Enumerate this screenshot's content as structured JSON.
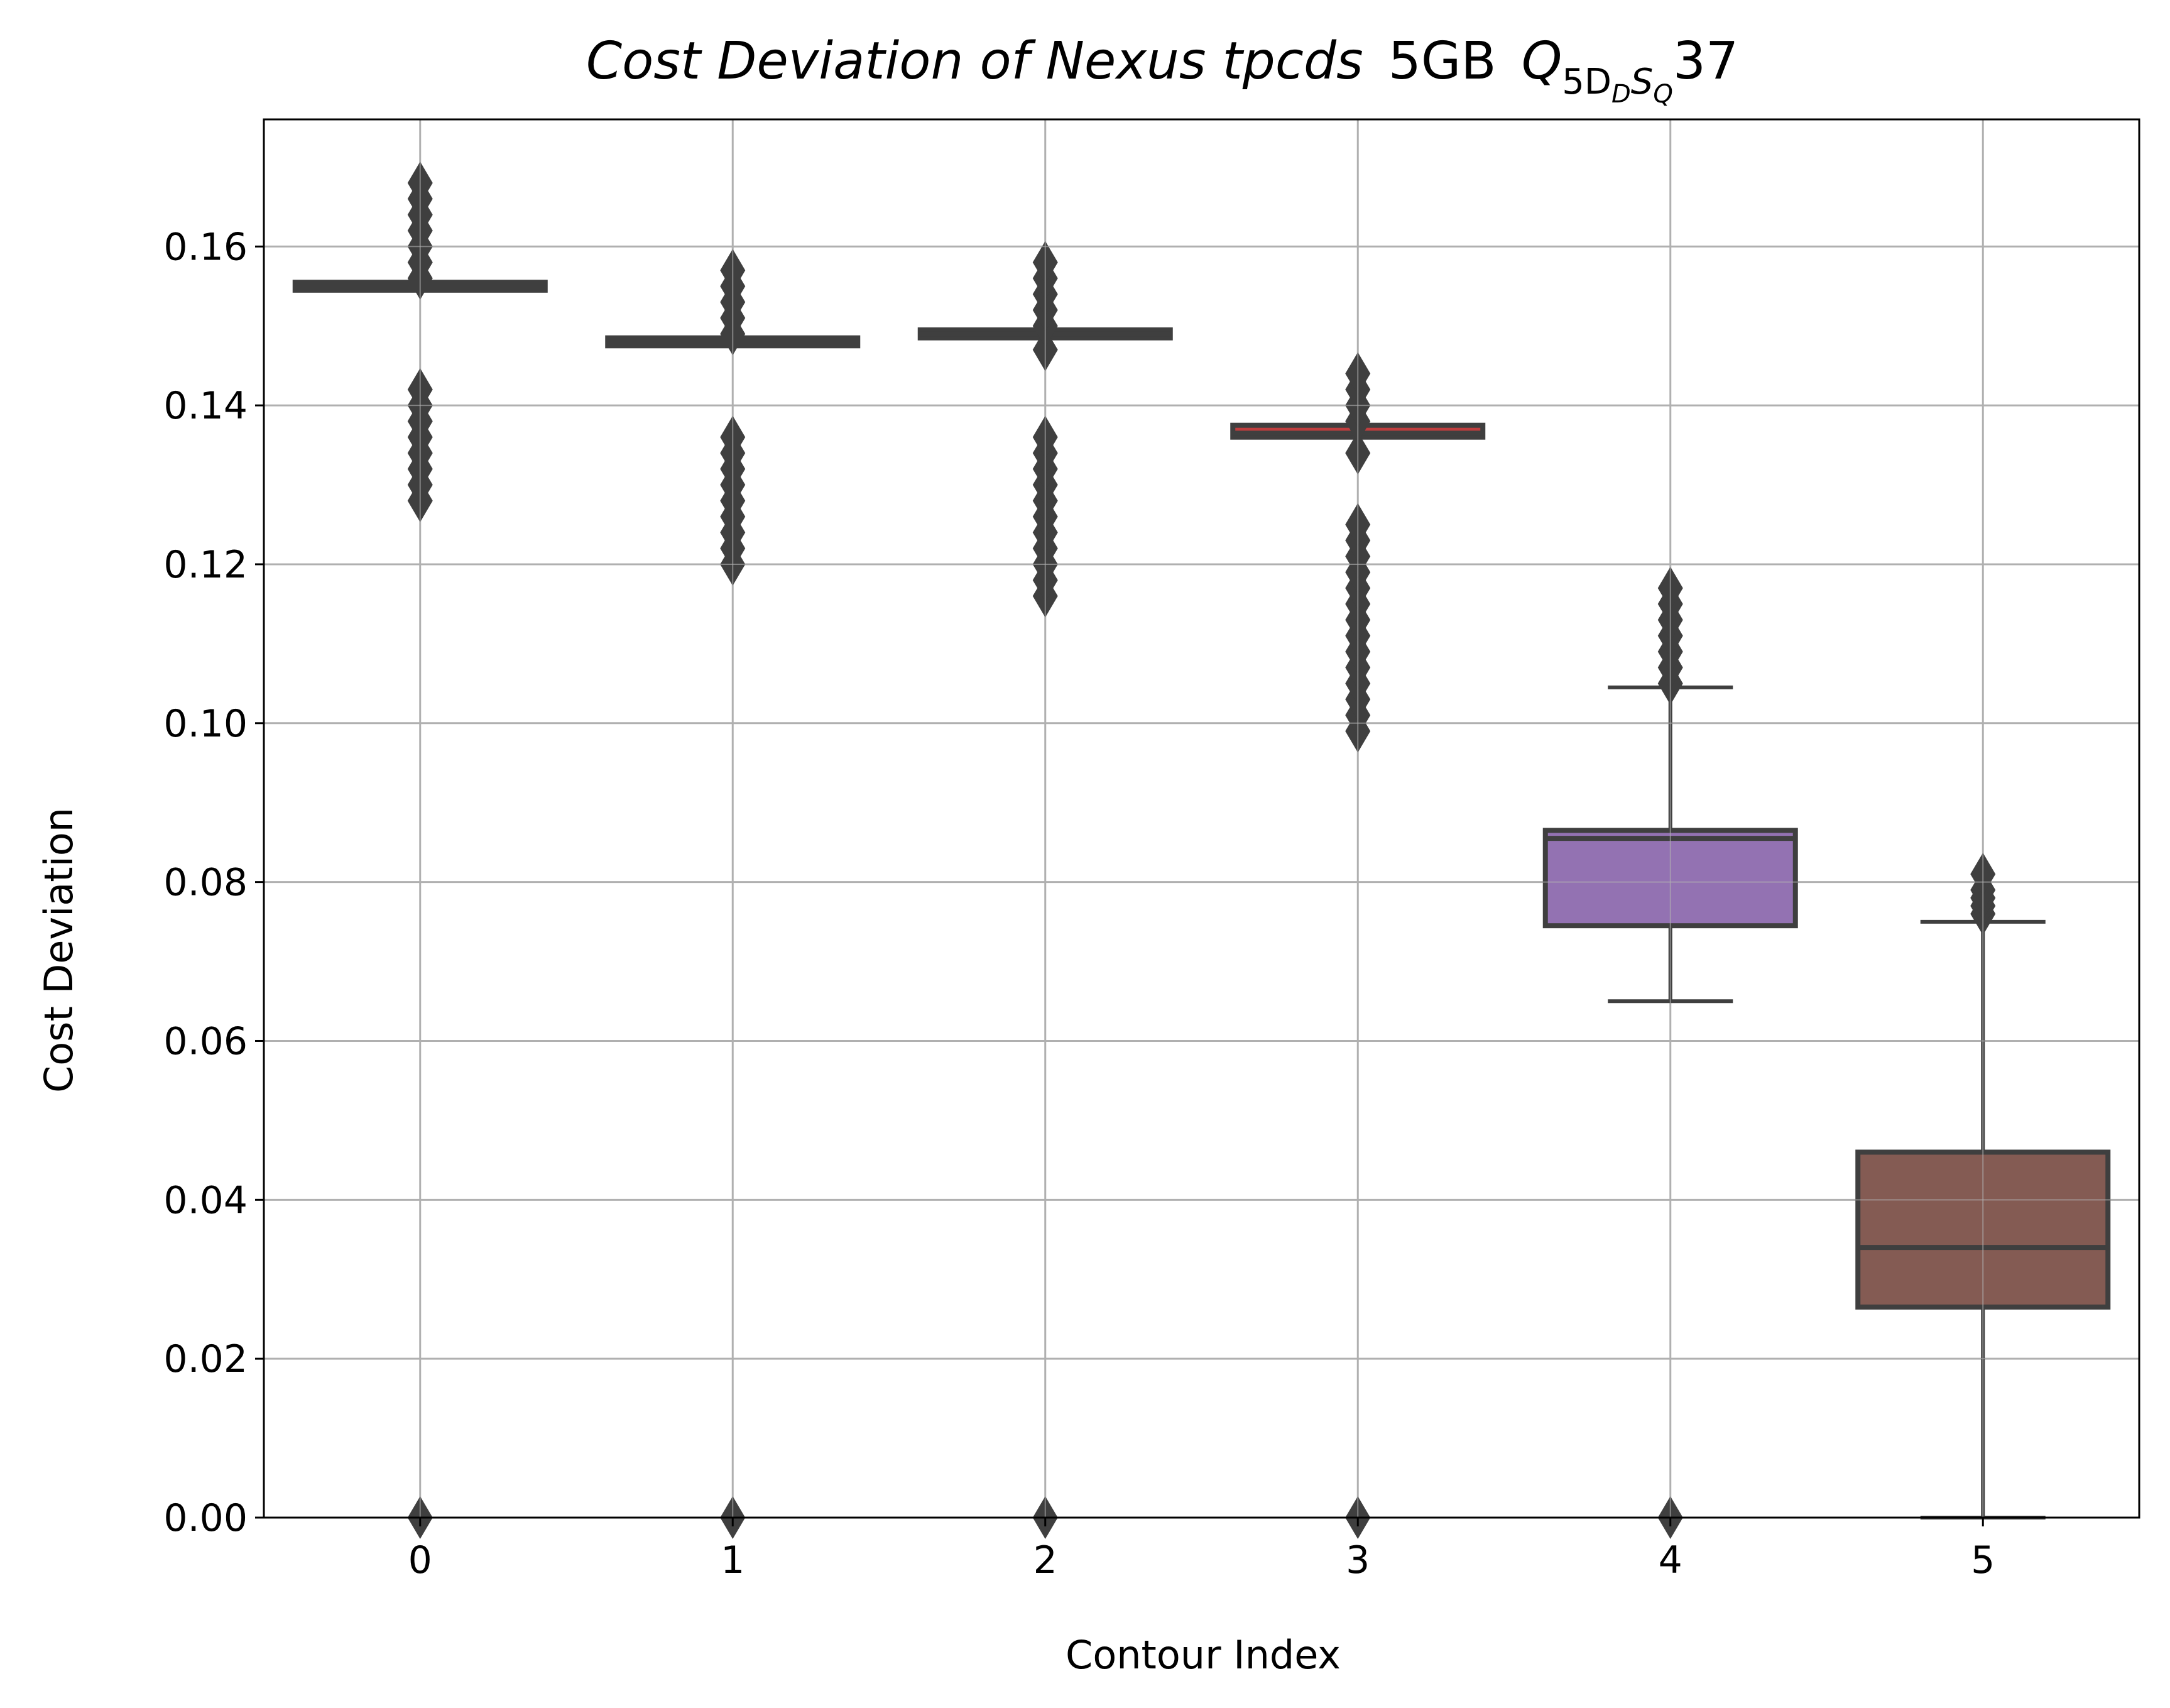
{
  "chart_data": {
    "type": "box",
    "title": {
      "prefix": "Cost Deviation of Nexus tpcds",
      "scale": "5GB",
      "query_base": "Q",
      "query_sub": "5D",
      "query_sub_sub": "D",
      "query_sub2": "S",
      "query_sub2_sub": "Q",
      "query_id": "37"
    },
    "xlabel": "Contour Index",
    "ylabel": "Cost Deviation",
    "ylim": [
      0,
      0.176
    ],
    "yticks": [
      "0.00",
      "0.02",
      "0.04",
      "0.06",
      "0.08",
      "0.10",
      "0.12",
      "0.14",
      "0.16"
    ],
    "grid": true,
    "categories": [
      "0",
      "1",
      "2",
      "3",
      "4",
      "5"
    ],
    "boxes": [
      {
        "category": "0",
        "q1": 0.1545,
        "median": 0.155,
        "q3": 0.1555,
        "whisker_low": 0.1545,
        "whisker_high": 0.1555,
        "outliers": [
          0.0,
          0.128,
          0.13,
          0.132,
          0.134,
          0.136,
          0.138,
          0.14,
          0.142,
          0.156,
          0.158,
          0.16,
          0.162,
          0.164,
          0.166,
          0.168
        ],
        "color": "#3274a1"
      },
      {
        "category": "1",
        "q1": 0.1475,
        "median": 0.148,
        "q3": 0.1485,
        "whisker_low": 0.1475,
        "whisker_high": 0.1485,
        "outliers": [
          0.0,
          0.12,
          0.122,
          0.124,
          0.126,
          0.128,
          0.13,
          0.132,
          0.134,
          0.136,
          0.149,
          0.151,
          0.153,
          0.155,
          0.157
        ],
        "color": "#e1812c"
      },
      {
        "category": "2",
        "q1": 0.1485,
        "median": 0.149,
        "q3": 0.1495,
        "whisker_low": 0.1485,
        "whisker_high": 0.1495,
        "outliers": [
          0.0,
          0.116,
          0.118,
          0.12,
          0.122,
          0.124,
          0.126,
          0.128,
          0.13,
          0.132,
          0.134,
          0.136,
          0.147,
          0.15,
          0.152,
          0.154,
          0.156,
          0.158
        ],
        "color": "#3a923a"
      },
      {
        "category": "3",
        "q1": 0.136,
        "median": 0.1365,
        "q3": 0.1375,
        "whisker_low": 0.136,
        "whisker_high": 0.1375,
        "outliers": [
          0.0,
          0.099,
          0.101,
          0.103,
          0.105,
          0.107,
          0.109,
          0.111,
          0.113,
          0.115,
          0.117,
          0.119,
          0.121,
          0.123,
          0.125,
          0.134,
          0.138,
          0.14,
          0.142,
          0.144
        ],
        "color": "#c03d3e"
      },
      {
        "category": "4",
        "q1": 0.0745,
        "median": 0.0855,
        "q3": 0.0865,
        "whisker_low": 0.065,
        "whisker_high": 0.1045,
        "outliers": [
          0.0,
          0.105,
          0.107,
          0.109,
          0.111,
          0.113,
          0.115,
          0.117
        ],
        "color": "#9372b2"
      },
      {
        "category": "5",
        "q1": 0.0265,
        "median": 0.034,
        "q3": 0.046,
        "whisker_low": 0.0,
        "whisker_high": 0.075,
        "outliers": [
          0.076,
          0.077,
          0.078,
          0.079,
          0.081
        ],
        "color": "#845b53"
      }
    ]
  }
}
